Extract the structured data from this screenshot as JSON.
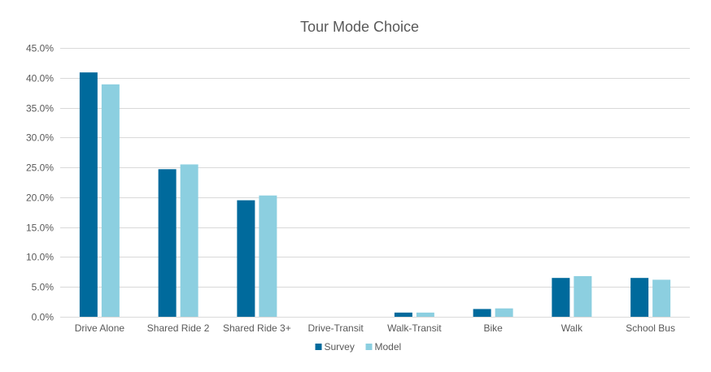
{
  "chart_data": {
    "type": "bar",
    "title": "Tour Mode Choice",
    "xlabel": "",
    "ylabel": "",
    "categories": [
      "Drive Alone",
      "Shared Ride 2",
      "Shared Ride 3+",
      "Drive-Transit",
      "Walk-Transit",
      "Bike",
      "Walk",
      "School Bus"
    ],
    "series": [
      {
        "name": "Survey",
        "color": "#006a9c",
        "values": [
          40.9,
          24.7,
          19.5,
          0.0,
          0.7,
          1.3,
          6.5,
          6.5
        ]
      },
      {
        "name": "Model",
        "color": "#8ccfe0",
        "values": [
          38.9,
          25.5,
          20.3,
          0.0,
          0.7,
          1.4,
          6.8,
          6.2
        ]
      }
    ],
    "ylim": [
      0,
      45
    ],
    "yticks": [
      "0.0%",
      "5.0%",
      "10.0%",
      "15.0%",
      "20.0%",
      "25.0%",
      "30.0%",
      "35.0%",
      "40.0%",
      "45.0%"
    ],
    "grid": true,
    "legend": "bottom"
  }
}
